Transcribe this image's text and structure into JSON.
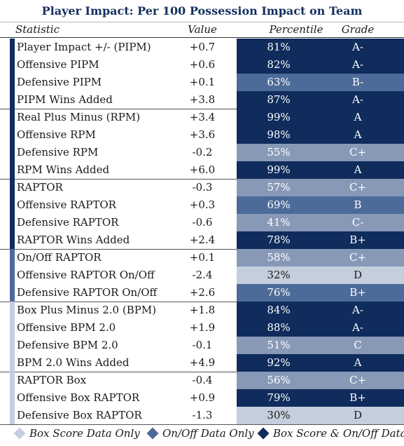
{
  "title": "Player Impact: Per 100 Possession Impact on Team",
  "headers": {
    "statistic": "Statistic",
    "value": "Value",
    "percentile": "Percentile",
    "grade": "Grade"
  },
  "colors": {
    "both": "#0f2c5c",
    "onoff": "#4d6b98",
    "mid": "#8799b7",
    "box": "#c5cedd"
  },
  "groups": [
    {
      "source": "both",
      "rows": [
        {
          "stat": "Player Impact +/- (PIPM)",
          "value": "+0.7",
          "percentile": "81%",
          "grade": "A-"
        },
        {
          "stat": "Offensive PIPM",
          "value": "+0.6",
          "percentile": "82%",
          "grade": "A-"
        },
        {
          "stat": "Defensive PIPM",
          "value": "+0.1",
          "percentile": "63%",
          "grade": "B-"
        },
        {
          "stat": "PIPM Wins Added",
          "value": "+3.8",
          "percentile": "87%",
          "grade": "A-"
        }
      ]
    },
    {
      "source": "both",
      "rows": [
        {
          "stat": "Real Plus Minus (RPM)",
          "value": "+3.4",
          "percentile": "99%",
          "grade": "A"
        },
        {
          "stat": "Offensive RPM",
          "value": "+3.6",
          "percentile": "98%",
          "grade": "A"
        },
        {
          "stat": "Defensive RPM",
          "value": "-0.2",
          "percentile": "55%",
          "grade": "C+"
        },
        {
          "stat": "RPM Wins Added",
          "value": "+6.0",
          "percentile": "99%",
          "grade": "A"
        }
      ]
    },
    {
      "source": "both",
      "rows": [
        {
          "stat": "RAPTOR",
          "value": "-0.3",
          "percentile": "57%",
          "grade": "C+"
        },
        {
          "stat": "Offensive RAPTOR",
          "value": "+0.3",
          "percentile": "69%",
          "grade": "B"
        },
        {
          "stat": "Defensive RAPTOR",
          "value": "-0.6",
          "percentile": "41%",
          "grade": "C-"
        },
        {
          "stat": "RAPTOR Wins Added",
          "value": "+2.4",
          "percentile": "78%",
          "grade": "B+"
        }
      ]
    },
    {
      "source": "onoff",
      "rows": [
        {
          "stat": "On/Off RAPTOR",
          "value": "+0.1",
          "percentile": "58%",
          "grade": "C+"
        },
        {
          "stat": "Offensive RAPTOR On/Off",
          "value": "-2.4",
          "percentile": "32%",
          "grade": "D"
        },
        {
          "stat": "Defensive RAPTOR On/Off",
          "value": "+2.6",
          "percentile": "76%",
          "grade": "B+"
        }
      ]
    },
    {
      "source": "box",
      "rows": [
        {
          "stat": "Box Plus Minus 2.0 (BPM)",
          "value": "+1.8",
          "percentile": "84%",
          "grade": "A-"
        },
        {
          "stat": "Offensive BPM 2.0",
          "value": "+1.9",
          "percentile": "88%",
          "grade": "A-"
        },
        {
          "stat": "Defensive BPM 2.0",
          "value": "-0.1",
          "percentile": "51%",
          "grade": "C"
        },
        {
          "stat": "BPM 2.0 Wins Added",
          "value": "+4.9",
          "percentile": "92%",
          "grade": "A"
        }
      ]
    },
    {
      "source": "box",
      "rows": [
        {
          "stat": "RAPTOR Box",
          "value": "-0.4",
          "percentile": "56%",
          "grade": "C+"
        },
        {
          "stat": "Offensive Box RAPTOR",
          "value": "+0.9",
          "percentile": "79%",
          "grade": "B+"
        },
        {
          "stat": "Defensive Box RAPTOR",
          "value": "-1.3",
          "percentile": "30%",
          "grade": "D"
        }
      ]
    }
  ],
  "legend": [
    {
      "label": "Box Score Data Only",
      "color": "#c5cedd"
    },
    {
      "label": "On/Off Data Only",
      "color": "#4d6b98"
    },
    {
      "label": "Box Score & On/Off Data",
      "color": "#0f2c5c"
    }
  ]
}
